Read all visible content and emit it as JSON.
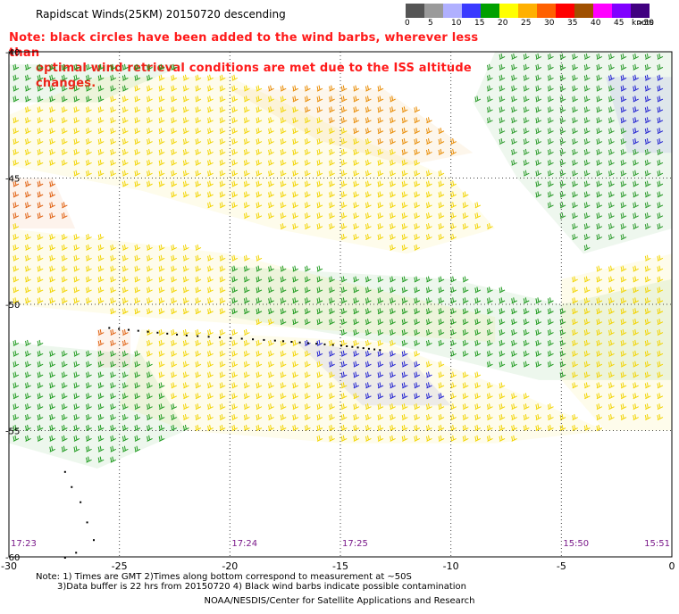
{
  "header": {
    "title": "Rapidscat Winds(25KM) 20150720 descending",
    "note_line1": "Note: black circles have been added to the wind barbs, wherever less than",
    "note_line2": "optimal wind retrieval conditions are met due to the ISS altitude changes."
  },
  "color_scale": {
    "labels": [
      "0",
      "5",
      "10",
      "15",
      "20",
      "25",
      "30",
      "35",
      "40",
      "45",
      ">50"
    ],
    "unit": "knots",
    "colors": [
      "#555555",
      "#9a9a9a",
      "#b0b0ff",
      "#3a3aff",
      "#00a000",
      "#ffff00",
      "#ffb000",
      "#ff6000",
      "#ff0000",
      "#a05000",
      "#ff00ff",
      "#8000ff",
      "#400080"
    ]
  },
  "chart_data": {
    "type": "scatter",
    "title": "Rapidscat Winds(25KM) 20150720 descending",
    "xlim": [
      -30,
      0
    ],
    "ylim": [
      -60,
      -40
    ],
    "x_ticks": [
      -30,
      -25,
      -20,
      -15,
      -10,
      -5,
      0
    ],
    "x_tick_labels": [
      "-30",
      "-25",
      "-20",
      "-15",
      "-10",
      "-5",
      "0"
    ],
    "y_ticks": [
      -40,
      -45,
      -50,
      -55,
      -60
    ],
    "y_tick_labels": [
      "-40",
      "-45",
      "-50",
      "-55",
      "-60"
    ],
    "grid": true,
    "time_labels": [
      {
        "x": -30,
        "label": "17:23"
      },
      {
        "x": -20,
        "label": "17:24"
      },
      {
        "x": -15,
        "label": "17:25"
      },
      {
        "x": -5,
        "label": "15:50"
      },
      {
        "x": 0,
        "label": "15:51"
      }
    ],
    "wind_regions": [
      {
        "name": "orange",
        "color": "#e88a00",
        "points": [
          [
            -20,
            -41.5
          ],
          [
            -13,
            -41.5
          ],
          [
            -9,
            -44
          ],
          [
            -12,
            -44.5
          ],
          [
            -16,
            -43.5
          ]
        ]
      },
      {
        "name": "orange-west",
        "color": "#e06010",
        "points": [
          [
            -30,
            -45
          ],
          [
            -28,
            -45
          ],
          [
            -27,
            -47
          ],
          [
            -30,
            -47
          ]
        ]
      },
      {
        "name": "yellow-north",
        "color": "#f2d400",
        "points": [
          [
            -26,
            -41
          ],
          [
            -20,
            -41
          ],
          [
            -14,
            -43.5
          ],
          [
            -10,
            -45
          ],
          [
            -8,
            -47
          ],
          [
            -12,
            -48
          ],
          [
            -18,
            -47
          ],
          [
            -24,
            -45.5
          ],
          [
            -30,
            -44.5
          ],
          [
            -30,
            -42.5
          ]
        ]
      },
      {
        "name": "green-north",
        "color": "#1e9a1e",
        "points": [
          [
            -30,
            -40.5
          ],
          [
            -22,
            -40.5
          ],
          [
            -26,
            -42
          ],
          [
            -30,
            -42
          ]
        ]
      },
      {
        "name": "green-east",
        "color": "#2a9a2a",
        "points": [
          [
            -8,
            -40
          ],
          [
            0,
            -40
          ],
          [
            0,
            -47
          ],
          [
            -4,
            -48
          ],
          [
            -7,
            -45
          ],
          [
            -9,
            -42
          ]
        ]
      },
      {
        "name": "blue-east",
        "color": "#2020d0",
        "points": [
          [
            -3,
            -41
          ],
          [
            0,
            -41
          ],
          [
            0,
            -44
          ],
          [
            -2,
            -44
          ]
        ]
      },
      {
        "name": "yellow-mid",
        "color": "#f2d400",
        "points": [
          [
            -30,
            -47
          ],
          [
            -20,
            -48
          ],
          [
            -13,
            -49.5
          ],
          [
            -8,
            -50.5
          ],
          [
            -8,
            -51.5
          ],
          [
            -16,
            -51
          ],
          [
            -24,
            -50.5
          ],
          [
            -30,
            -50
          ]
        ]
      },
      {
        "name": "green-mid",
        "color": "#1e9a1e",
        "points": [
          [
            -20,
            -48.5
          ],
          [
            -10,
            -49
          ],
          [
            -5,
            -50
          ],
          [
            0,
            -49
          ],
          [
            0,
            -53
          ],
          [
            -6,
            -53
          ],
          [
            -13,
            -51.5
          ],
          [
            -20,
            -50.5
          ]
        ]
      },
      {
        "name": "yellow-east",
        "color": "#f2d400",
        "points": [
          [
            -5,
            -49
          ],
          [
            0,
            -48
          ],
          [
            0,
            -55
          ],
          [
            -3,
            -55
          ],
          [
            -5,
            -53
          ]
        ]
      },
      {
        "name": "orange-west-mid",
        "color": "#e06010",
        "points": [
          [
            -26,
            -51
          ],
          [
            -24.5,
            -51
          ],
          [
            -24.5,
            -52.5
          ],
          [
            -26,
            -52.5
          ]
        ]
      },
      {
        "name": "yellow-south",
        "color": "#f2d400",
        "points": [
          [
            -24,
            -51
          ],
          [
            -13,
            -51.5
          ],
          [
            -7,
            -53.5
          ],
          [
            -3,
            -55
          ],
          [
            -8,
            -55.5
          ],
          [
            -15,
            -55.5
          ],
          [
            -22,
            -55
          ],
          [
            -25,
            -54
          ]
        ]
      },
      {
        "name": "green-south",
        "color": "#1e9a1e",
        "points": [
          [
            -30,
            -51.5
          ],
          [
            -24,
            -52
          ],
          [
            -22,
            -55
          ],
          [
            -26,
            -56.5
          ],
          [
            -30,
            -55.5
          ]
        ]
      },
      {
        "name": "blue-mid",
        "color": "#2020d0",
        "points": [
          [
            -17,
            -51.5
          ],
          [
            -12,
            -52
          ],
          [
            -10,
            -54
          ],
          [
            -14,
            -54
          ]
        ]
      }
    ],
    "contamination_track": [
      [
        -25.5,
        -50.9
      ],
      [
        -22,
        -51.2
      ],
      [
        -18,
        -51.4
      ],
      [
        -15,
        -51.6
      ],
      [
        -13,
        -51.8
      ]
    ],
    "land_gap": [
      [
        -7,
        -52.8
      ],
      [
        -5.5,
        -52.5
      ],
      [
        -5.2,
        -53.5
      ],
      [
        -6.5,
        -54
      ]
    ],
    "isolated_points": [
      [
        -27.5,
        -56.6
      ],
      [
        -27.2,
        -57.2
      ],
      [
        -26.8,
        -57.8
      ],
      [
        -26.5,
        -58.6
      ],
      [
        -26.2,
        -59.3
      ],
      [
        -27,
        -59.8
      ],
      [
        -27.5,
        -60
      ]
    ]
  },
  "footer": {
    "line1": "Note: 1) Times are GMT  2)Times along bottom correspond to measurement at ~50S",
    "line2": "3)Data buffer is 22 hrs from 20150720  4) Black wind barbs indicate possible contamination",
    "line3": "NOAA/NESDIS/Center for Satellite Applications and Research"
  }
}
